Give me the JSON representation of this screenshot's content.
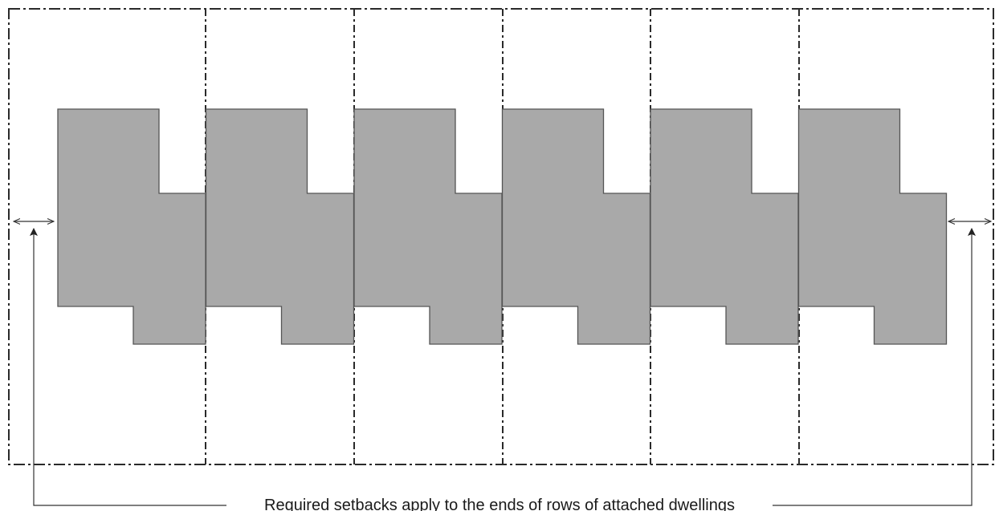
{
  "diagram": {
    "caption": "Required setbacks apply to the ends of rows of attached dwellings",
    "dwelling_count": 6,
    "lot_count": 6,
    "colors": {
      "dwelling_fill": "#a9a9a9",
      "dwelling_stroke": "#555555",
      "lot_line": "#2a2a2a",
      "background": "#ffffff"
    },
    "components": [
      {
        "name": "lot-boundary",
        "style": "dash-dot line"
      },
      {
        "name": "attached-dwelling",
        "style": "gray filled footprint"
      },
      {
        "name": "setback-arrow-left",
        "icon": "double-headed-arrow-icon"
      },
      {
        "name": "setback-arrow-right",
        "icon": "double-headed-arrow-icon"
      },
      {
        "name": "leader-line",
        "icon": "arrow-up-icon"
      }
    ]
  }
}
